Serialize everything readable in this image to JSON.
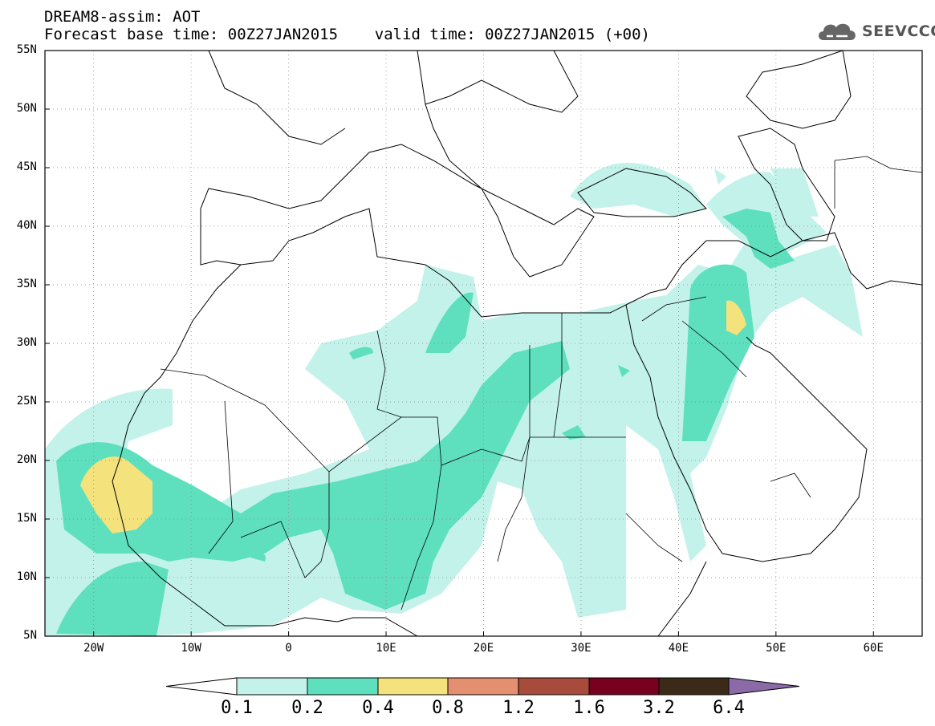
{
  "header": {
    "line1": "DREAM8-assim: AOT",
    "line2": "Forecast base time: 00Z27JAN2015    valid time: 00Z27JAN2015 (+00)"
  },
  "logo": {
    "icon": "cloud-icon",
    "text": "SEEVCCC"
  },
  "axes": {
    "lat_labels": [
      "55N",
      "50N",
      "45N",
      "40N",
      "35N",
      "30N",
      "25N",
      "20N",
      "15N",
      "10N",
      "5N"
    ],
    "lon_labels": [
      "20W",
      "10W",
      "0",
      "10E",
      "20E",
      "30E",
      "40E",
      "50E",
      "60E"
    ],
    "lon_range": [
      -25,
      65
    ],
    "lat_range": [
      5,
      55
    ]
  },
  "colorbar": {
    "labels": [
      "0.1",
      "0.2",
      "0.4",
      "0.8",
      "1.2",
      "1.6",
      "3.2",
      "6.4"
    ],
    "colors": [
      "#ffffff",
      "#c3f2ea",
      "#5ee0bf",
      "#f4e27c",
      "#e49070",
      "#a84b3c",
      "#77001f",
      "#3b2a17",
      "#8a6aa8"
    ]
  }
}
